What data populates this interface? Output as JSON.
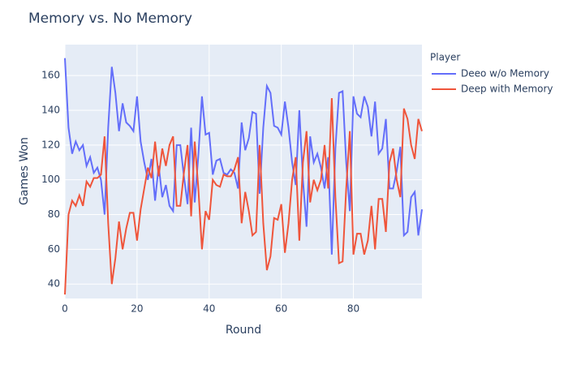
{
  "chart_data": {
    "type": "line",
    "title": "Memory vs. No Memory",
    "x_label": "Round",
    "y_label": "Games Won",
    "legend_title": "Player",
    "x": [
      0,
      1,
      2,
      3,
      4,
      5,
      6,
      7,
      8,
      9,
      10,
      11,
      12,
      13,
      14,
      15,
      16,
      17,
      18,
      19,
      20,
      21,
      22,
      23,
      24,
      25,
      26,
      27,
      28,
      29,
      30,
      31,
      32,
      33,
      34,
      35,
      36,
      37,
      38,
      39,
      40,
      41,
      42,
      43,
      44,
      45,
      46,
      47,
      48,
      49,
      50,
      51,
      52,
      53,
      54,
      55,
      56,
      57,
      58,
      59,
      60,
      61,
      62,
      63,
      64,
      65,
      66,
      67,
      68,
      69,
      70,
      71,
      72,
      73,
      74,
      75,
      76,
      77,
      78,
      79,
      80,
      81,
      82,
      83,
      84,
      85,
      86,
      87,
      88,
      89,
      90,
      91,
      92,
      93,
      94,
      95,
      96,
      97,
      98,
      99
    ],
    "series": [
      {
        "name": "Deeo w/o Memory",
        "color": "#636efa",
        "values": [
          170,
          130,
          115,
          122,
          117,
          120,
          108,
          113,
          104,
          107,
          100,
          80,
          130,
          165,
          150,
          128,
          144,
          133,
          131,
          128,
          148,
          122,
          110,
          100,
          112,
          88,
          108,
          90,
          97,
          85,
          82,
          120,
          120,
          102,
          86,
          130,
          87,
          114,
          148,
          126,
          127,
          103,
          111,
          112,
          104,
          103,
          106,
          104,
          95,
          133,
          117,
          124,
          139,
          138,
          92,
          130,
          154,
          150,
          131,
          130,
          126,
          145,
          130,
          110,
          97,
          140,
          100,
          73,
          125,
          110,
          115,
          107,
          95,
          113,
          57,
          118,
          150,
          151,
          110,
          82,
          148,
          138,
          136,
          148,
          142,
          125,
          145,
          115,
          118,
          135,
          95,
          95,
          105,
          119,
          68,
          70,
          90,
          93,
          68,
          83
        ]
      },
      {
        "name": "Deep with Memory",
        "color": "#ef553b",
        "values": [
          34,
          80,
          88,
          85,
          91,
          85,
          99,
          96,
          101,
          101,
          103,
          125,
          75,
          40,
          55,
          76,
          60,
          72,
          81,
          81,
          65,
          83,
          95,
          107,
          101,
          122,
          102,
          118,
          108,
          120,
          125,
          85,
          85,
          104,
          120,
          79,
          122,
          95,
          60,
          82,
          77,
          100,
          97,
          96,
          103,
          102,
          102,
          106,
          113,
          75,
          93,
          82,
          68,
          70,
          120,
          75,
          48,
          56,
          78,
          77,
          86,
          58,
          75,
          100,
          113,
          65,
          110,
          128,
          87,
          100,
          94,
          100,
          120,
          95,
          147,
          90,
          52,
          53,
          95,
          128,
          57,
          69,
          69,
          57,
          65,
          85,
          60,
          89,
          89,
          70,
          110,
          118,
          100,
          90,
          141,
          135,
          120,
          112,
          135,
          128
        ]
      }
    ],
    "xlim": [
      0,
      99
    ],
    "xticks": [
      0,
      20,
      40,
      60,
      80
    ],
    "ylim": [
      31.7,
      177.8
    ],
    "yticks": [
      40,
      60,
      80,
      100,
      120,
      140,
      160
    ],
    "grid": true
  }
}
